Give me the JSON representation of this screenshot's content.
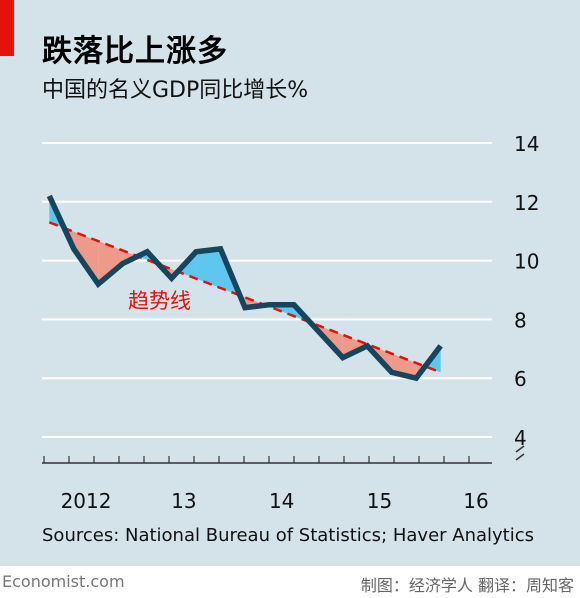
{
  "header": {
    "title": "跌落比上涨多",
    "subtitle": "中国的名义GDP同比增长%"
  },
  "chart_data": {
    "type": "line",
    "xlabel": "",
    "ylabel": "",
    "ylim": [
      4,
      14
    ],
    "xlim": [
      2011.55,
      2016.15
    ],
    "yticks": [
      4,
      6,
      8,
      10,
      12,
      14
    ],
    "xticks": [
      {
        "label": "2012",
        "x": 2012.0
      },
      {
        "label": "13",
        "x": 2013.0
      },
      {
        "label": "14",
        "x": 2014.0
      },
      {
        "label": "15",
        "x": 2015.0
      },
      {
        "label": "16",
        "x": 2015.625
      }
    ],
    "series": [
      {
        "values": [
          {
            "x": 2011.625,
            "y": 12.2
          },
          {
            "x": 2011.875,
            "y": 10.4
          },
          {
            "x": 2012.125,
            "y": 9.2
          },
          {
            "x": 2012.375,
            "y": 9.9
          },
          {
            "x": 2012.625,
            "y": 10.3
          },
          {
            "x": 2012.875,
            "y": 9.4
          },
          {
            "x": 2013.125,
            "y": 10.3
          },
          {
            "x": 2013.375,
            "y": 10.4
          },
          {
            "x": 2013.625,
            "y": 8.4
          },
          {
            "x": 2013.875,
            "y": 8.5
          },
          {
            "x": 2014.125,
            "y": 8.5
          },
          {
            "x": 2014.375,
            "y": 7.6
          },
          {
            "x": 2014.625,
            "y": 6.7
          },
          {
            "x": 2014.875,
            "y": 7.1
          },
          {
            "x": 2015.125,
            "y": 6.2
          },
          {
            "x": 2015.375,
            "y": 6.0
          },
          {
            "x": 2015.625,
            "y": 7.1
          }
        ]
      },
      {
        "name": "趋势线",
        "values": [
          {
            "x": 2011.625,
            "y": 11.3
          },
          {
            "x": 2015.625,
            "y": 6.2
          }
        ]
      }
    ],
    "annotations": [
      "趋势线"
    ],
    "colors": {
      "line": "#16455e",
      "trend": "#e3120b",
      "above_fill": "#5fc6ee",
      "below_fill": "#ee9a8a",
      "grid": "#ffffff"
    }
  },
  "source": "Sources: National Bureau of Statistics; Haver Analytics",
  "footer": {
    "brand": "Economist.com",
    "credit": "制图：经济学人 翻译：周知客"
  }
}
